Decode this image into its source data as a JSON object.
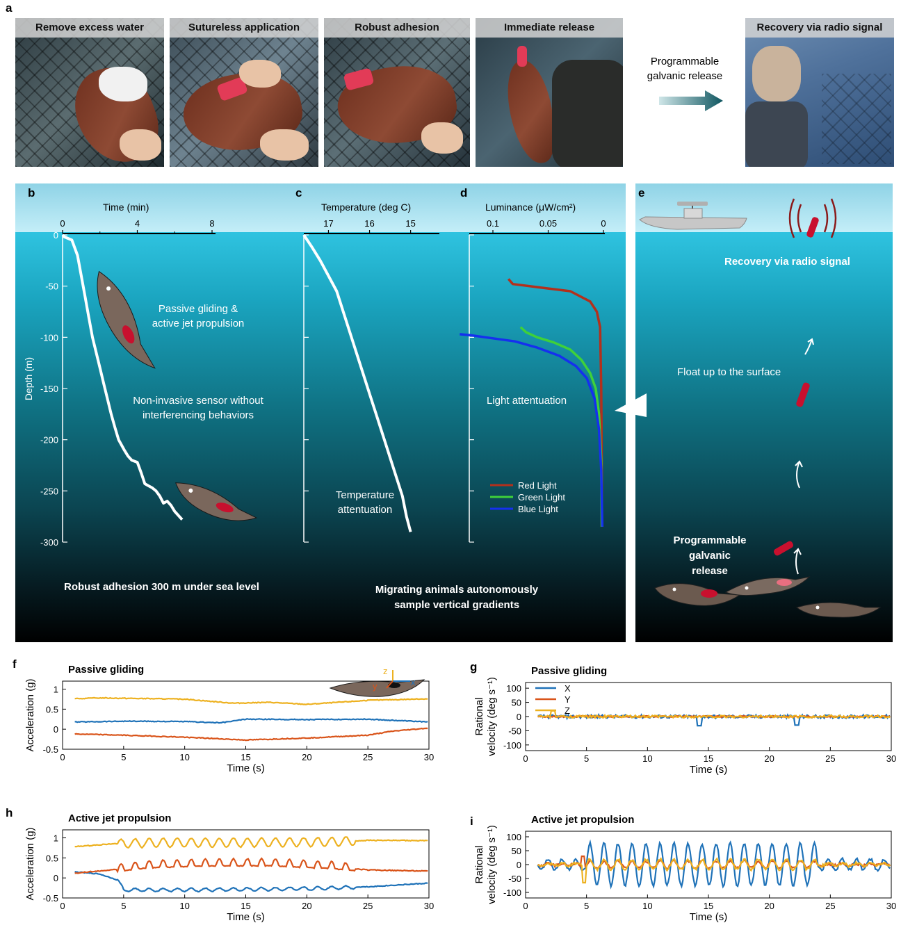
{
  "panel_letters": {
    "a": "a",
    "b": "b",
    "c": "c",
    "d": "d",
    "e": "e",
    "f": "f",
    "g": "g",
    "h": "h",
    "i": "i"
  },
  "panel_a": {
    "photos": [
      {
        "caption": "Remove excess water"
      },
      {
        "caption": "Sutureless application"
      },
      {
        "caption": "Robust adhesion"
      },
      {
        "caption": "Immediate release"
      },
      {
        "caption": "Recovery via radio signal"
      }
    ],
    "arrow_label_line1": "Programmable",
    "arrow_label_line2": "galvanic release"
  },
  "panel_b": {
    "x_title": "Time (min)",
    "x_ticks": [
      "0",
      "4",
      "8"
    ],
    "y_title": "Depth (m)",
    "y_ticks": [
      "0",
      "-50",
      "-100",
      "-150",
      "-200",
      "-250",
      "-300"
    ],
    "label_glide_1": "Passive gliding &",
    "label_glide_2": "active jet propulsion",
    "label_sensor_1": "Non-invasive sensor without",
    "label_sensor_2": "interferencing behaviors",
    "bottom_label": "Robust adhesion 300 m under sea level"
  },
  "panel_c": {
    "x_title": "Temperature (deg C)",
    "x_ticks": [
      "17",
      "16",
      "15"
    ],
    "label_1": "Temperature",
    "label_2": "attentuation"
  },
  "panel_d": {
    "x_title": "Luminance (μW/cm²)",
    "x_ticks": [
      "0.1",
      "0.05",
      "0"
    ],
    "label": "Light attentuation",
    "legend": [
      {
        "name": "Red Light",
        "color": "#b3301c"
      },
      {
        "name": "Green Light",
        "color": "#3fd13a"
      },
      {
        "name": "Blue Light",
        "color": "#1530ee"
      }
    ]
  },
  "bottom_center_1": "Migrating animals autonomously",
  "bottom_center_2": "sample vertical gradients",
  "panel_e": {
    "recovery": "Recovery via radio signal",
    "float": "Float up to the surface",
    "release_1": "Programmable",
    "release_2": "galvanic release"
  },
  "colors": {
    "x": "#1f72b8",
    "y": "#d9541a",
    "z": "#edb120"
  },
  "chart_data": [
    {
      "id": "b",
      "type": "line",
      "xlabel": "Time (min)",
      "ylabel": "Depth (m)",
      "xlim": [
        0,
        10
      ],
      "ylim": [
        -300,
        0
      ],
      "series": [
        {
          "values_x": [
            0,
            0.1,
            0.5,
            0.8,
            1.0,
            1.2,
            1.4,
            1.6,
            1.8,
            2.0,
            2.2,
            2.4,
            2.6,
            2.8,
            3.0,
            3.3,
            3.5,
            3.7,
            4.0,
            4.2,
            4.4,
            4.6,
            4.8,
            5.0,
            5.2,
            5.4,
            5.6,
            5.8,
            6.0,
            6.4
          ],
          "values_y": [
            0,
            -2,
            -5,
            -20,
            -40,
            -60,
            -80,
            -100,
            -115,
            -130,
            -145,
            -160,
            -175,
            -188,
            -200,
            -210,
            -216,
            -220,
            -222,
            -232,
            -243,
            -245,
            -247,
            -250,
            -255,
            -262,
            -260,
            -264,
            -270,
            -278
          ]
        }
      ]
    },
    {
      "id": "c",
      "type": "line",
      "xlabel": "Temperature (deg C)",
      "ylabel": "Depth (m)",
      "xlim": [
        17.6,
        14.3
      ],
      "ylim": [
        -300,
        0
      ],
      "series": [
        {
          "values_x": [
            17.6,
            17.4,
            17.2,
            17.0,
            16.8,
            16.6,
            16.4,
            16.2,
            16.0,
            15.8,
            15.6,
            15.4,
            15.2,
            15.1,
            15.0
          ],
          "values_y": [
            0,
            -12,
            -25,
            -40,
            -55,
            -80,
            -105,
            -130,
            -155,
            -180,
            -205,
            -230,
            -255,
            -275,
            -290
          ]
        }
      ]
    },
    {
      "id": "d",
      "type": "line",
      "xlabel": "Luminance (μW/cm²)",
      "ylabel": "Depth (m)",
      "xlim": [
        0.13,
        0
      ],
      "ylim": [
        -300,
        0
      ],
      "series": [
        {
          "name": "Red Light",
          "values_x": [
            0.086,
            0.082,
            0.06,
            0.03,
            0.012,
            0.006,
            0.003,
            0.002,
            0.0015,
            0.0015
          ],
          "values_y": [
            -43,
            -48,
            -51,
            -55,
            -65,
            -75,
            -90,
            -150,
            -230,
            -285
          ]
        },
        {
          "name": "Green Light",
          "values_x": [
            0.075,
            0.07,
            0.06,
            0.045,
            0.03,
            0.02,
            0.012,
            0.007,
            0.004,
            0.002,
            0.0015
          ],
          "values_y": [
            -90,
            -95,
            -100,
            -105,
            -112,
            -122,
            -135,
            -150,
            -175,
            -220,
            -285
          ]
        },
        {
          "name": "Blue Light",
          "values_x": [
            0.13,
            0.12,
            0.1,
            0.08,
            0.06,
            0.04,
            0.025,
            0.015,
            0.008,
            0.004,
            0.002,
            0.001
          ],
          "values_y": [
            -97,
            -98,
            -101,
            -104,
            -110,
            -118,
            -128,
            -140,
            -160,
            -190,
            -230,
            -285
          ]
        }
      ]
    },
    {
      "id": "f",
      "type": "line",
      "title": "Passive gliding",
      "xlabel": "Time (s)",
      "ylabel": "Acceleration (g)",
      "xlim": [
        0,
        30
      ],
      "ylim": [
        -0.5,
        1.2
      ],
      "x_ticks": [
        "0",
        "5",
        "10",
        "15",
        "20",
        "25",
        "30"
      ],
      "y_ticks": [
        "-0.5",
        "0",
        "0.5",
        "1"
      ],
      "series": [
        {
          "name": "X",
          "base": [
            [
              1,
              0.18
            ],
            [
              5,
              0.2
            ],
            [
              10,
              0.19
            ],
            [
              13,
              0.16
            ],
            [
              15,
              0.25
            ],
            [
              20,
              0.24
            ],
            [
              25,
              0.25
            ],
            [
              30,
              0.18
            ]
          ]
        },
        {
          "name": "Y",
          "base": [
            [
              1,
              -0.12
            ],
            [
              5,
              -0.15
            ],
            [
              10,
              -0.2
            ],
            [
              15,
              -0.27
            ],
            [
              20,
              -0.22
            ],
            [
              25,
              -0.15
            ],
            [
              27,
              -0.05
            ],
            [
              30,
              0.03
            ]
          ]
        },
        {
          "name": "Z",
          "base": [
            [
              1,
              0.76
            ],
            [
              3,
              0.78
            ],
            [
              10,
              0.75
            ],
            [
              14,
              0.65
            ],
            [
              17,
              0.67
            ],
            [
              20,
              0.62
            ],
            [
              25,
              0.72
            ],
            [
              30,
              0.76
            ]
          ]
        }
      ]
    },
    {
      "id": "g",
      "type": "line",
      "title": "Passive gliding",
      "xlabel": "Time (s)",
      "ylabel": "Rational velocity (deg s⁻¹)",
      "xlim": [
        0,
        30
      ],
      "ylim": [
        -120,
        120
      ],
      "x_ticks": [
        "0",
        "5",
        "10",
        "15",
        "20",
        "25",
        "30"
      ],
      "y_ticks": [
        "-100",
        "-50",
        "0",
        "50",
        "100"
      ],
      "series": [
        {
          "name": "X",
          "amp": 12
        },
        {
          "name": "Y",
          "amp": 5
        },
        {
          "name": "Z",
          "amp": 9
        }
      ]
    },
    {
      "id": "h",
      "type": "line",
      "title": "Active jet propulsion",
      "xlabel": "Time (s)",
      "ylabel": "Acceleration (g)",
      "xlim": [
        0,
        30
      ],
      "ylim": [
        -0.5,
        1.2
      ],
      "x_ticks": [
        "0",
        "5",
        "10",
        "15",
        "20",
        "25",
        "30"
      ],
      "y_ticks": [
        "-0.5",
        "0",
        "0.5",
        "1"
      ],
      "series": [
        {
          "name": "X",
          "base": [
            [
              1,
              0.15
            ],
            [
              3,
              0.1
            ],
            [
              4.5,
              -0.05
            ],
            [
              5,
              -0.3
            ],
            [
              10,
              -0.3
            ],
            [
              20,
              -0.27
            ],
            [
              25,
              -0.22
            ],
            [
              30,
              -0.13
            ]
          ]
        },
        {
          "name": "Y",
          "base": [
            [
              1,
              0.12
            ],
            [
              4,
              0.2
            ],
            [
              7,
              0.3
            ],
            [
              12,
              0.35
            ],
            [
              17,
              0.35
            ],
            [
              22,
              0.28
            ],
            [
              25,
              0.2
            ],
            [
              30,
              0.17
            ]
          ]
        },
        {
          "name": "Z",
          "base": [
            [
              1,
              0.78
            ],
            [
              4,
              0.85
            ],
            [
              8,
              0.88
            ],
            [
              15,
              0.88
            ],
            [
              22,
              0.9
            ],
            [
              25,
              0.94
            ],
            [
              30,
              0.93
            ]
          ]
        }
      ]
    },
    {
      "id": "i",
      "type": "line",
      "title": "Active jet propulsion",
      "xlabel": "Time (s)",
      "ylabel": "Rational velocity (deg s⁻¹)",
      "xlim": [
        0,
        30
      ],
      "ylim": [
        -120,
        120
      ],
      "x_ticks": [
        "0",
        "5",
        "10",
        "15",
        "20",
        "25",
        "30"
      ],
      "y_ticks": [
        "-100",
        "-50",
        "0",
        "50",
        "100"
      ],
      "series": [
        {
          "name": "X",
          "amp": 95
        },
        {
          "name": "Y",
          "amp": 22
        },
        {
          "name": "Z",
          "amp": 30
        }
      ]
    }
  ]
}
